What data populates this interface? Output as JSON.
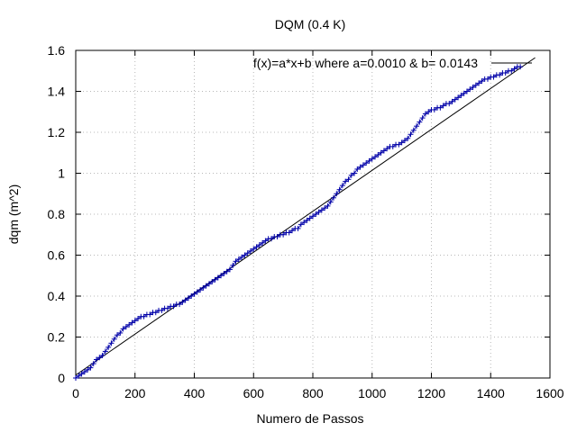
{
  "chart_data": {
    "type": "scatter",
    "title": "DQM (0.4 K)",
    "xlabel": "Numero de Passos",
    "ylabel": "dqm (m^2)",
    "xlim": [
      0,
      1600
    ],
    "ylim": [
      0,
      1.6
    ],
    "xticks": [
      "0",
      "200",
      "400",
      "600",
      "800",
      "1000",
      "1200",
      "1400",
      "1600"
    ],
    "yticks": [
      "0",
      "0.2",
      "0.4",
      "0.6",
      "0.8",
      "1",
      "1.2",
      "1.4",
      "1.6"
    ],
    "grid": true,
    "legend_position": "top-right",
    "fit_label": "f(x)=a*x+b where a=0.0010 & b= 0.0143",
    "fit": {
      "a": 0.001,
      "b": 0.0143,
      "x_range": [
        0,
        1550
      ]
    },
    "series": [
      {
        "points": [
          [
            0,
            0.0
          ],
          [
            10,
            0.01
          ],
          [
            20,
            0.02
          ],
          [
            30,
            0.03
          ],
          [
            40,
            0.04
          ],
          [
            50,
            0.05
          ],
          [
            60,
            0.07
          ],
          [
            70,
            0.09
          ],
          [
            80,
            0.1
          ],
          [
            90,
            0.11
          ],
          [
            100,
            0.13
          ],
          [
            110,
            0.15
          ],
          [
            120,
            0.17
          ],
          [
            130,
            0.19
          ],
          [
            140,
            0.21
          ],
          [
            150,
            0.22
          ],
          [
            160,
            0.24
          ],
          [
            170,
            0.25
          ],
          [
            180,
            0.26
          ],
          [
            190,
            0.27
          ],
          [
            200,
            0.28
          ],
          [
            210,
            0.29
          ],
          [
            220,
            0.3
          ],
          [
            230,
            0.3
          ],
          [
            240,
            0.31
          ],
          [
            250,
            0.31
          ],
          [
            260,
            0.32
          ],
          [
            270,
            0.32
          ],
          [
            280,
            0.33
          ],
          [
            290,
            0.33
          ],
          [
            300,
            0.34
          ],
          [
            310,
            0.34
          ],
          [
            320,
            0.35
          ],
          [
            330,
            0.35
          ],
          [
            340,
            0.36
          ],
          [
            350,
            0.36
          ],
          [
            360,
            0.37
          ],
          [
            370,
            0.38
          ],
          [
            380,
            0.39
          ],
          [
            390,
            0.4
          ],
          [
            400,
            0.41
          ],
          [
            410,
            0.42
          ],
          [
            420,
            0.43
          ],
          [
            430,
            0.44
          ],
          [
            440,
            0.45
          ],
          [
            450,
            0.46
          ],
          [
            460,
            0.47
          ],
          [
            470,
            0.48
          ],
          [
            480,
            0.49
          ],
          [
            490,
            0.5
          ],
          [
            500,
            0.51
          ],
          [
            510,
            0.52
          ],
          [
            520,
            0.53
          ],
          [
            530,
            0.55
          ],
          [
            540,
            0.57
          ],
          [
            550,
            0.58
          ],
          [
            560,
            0.59
          ],
          [
            570,
            0.6
          ],
          [
            580,
            0.61
          ],
          [
            590,
            0.62
          ],
          [
            600,
            0.63
          ],
          [
            610,
            0.64
          ],
          [
            620,
            0.65
          ],
          [
            630,
            0.66
          ],
          [
            640,
            0.67
          ],
          [
            650,
            0.68
          ],
          [
            660,
            0.68
          ],
          [
            670,
            0.69
          ],
          [
            680,
            0.69
          ],
          [
            690,
            0.7
          ],
          [
            700,
            0.7
          ],
          [
            710,
            0.71
          ],
          [
            720,
            0.71
          ],
          [
            730,
            0.72
          ],
          [
            740,
            0.73
          ],
          [
            750,
            0.73
          ],
          [
            760,
            0.75
          ],
          [
            770,
            0.76
          ],
          [
            780,
            0.77
          ],
          [
            790,
            0.78
          ],
          [
            800,
            0.79
          ],
          [
            810,
            0.8
          ],
          [
            820,
            0.81
          ],
          [
            830,
            0.82
          ],
          [
            840,
            0.83
          ],
          [
            850,
            0.84
          ],
          [
            860,
            0.86
          ],
          [
            870,
            0.88
          ],
          [
            880,
            0.9
          ],
          [
            890,
            0.92
          ],
          [
            900,
            0.94
          ],
          [
            910,
            0.96
          ],
          [
            920,
            0.97
          ],
          [
            930,
            0.99
          ],
          [
            940,
            1.0
          ],
          [
            950,
            1.02
          ],
          [
            960,
            1.03
          ],
          [
            970,
            1.04
          ],
          [
            980,
            1.05
          ],
          [
            990,
            1.06
          ],
          [
            1000,
            1.07
          ],
          [
            1010,
            1.08
          ],
          [
            1020,
            1.09
          ],
          [
            1030,
            1.1
          ],
          [
            1040,
            1.11
          ],
          [
            1050,
            1.12
          ],
          [
            1060,
            1.13
          ],
          [
            1070,
            1.13
          ],
          [
            1080,
            1.14
          ],
          [
            1090,
            1.14
          ],
          [
            1100,
            1.15
          ],
          [
            1110,
            1.16
          ],
          [
            1120,
            1.17
          ],
          [
            1130,
            1.19
          ],
          [
            1140,
            1.21
          ],
          [
            1150,
            1.23
          ],
          [
            1160,
            1.25
          ],
          [
            1170,
            1.27
          ],
          [
            1180,
            1.29
          ],
          [
            1190,
            1.3
          ],
          [
            1200,
            1.31
          ],
          [
            1210,
            1.31
          ],
          [
            1220,
            1.32
          ],
          [
            1230,
            1.32
          ],
          [
            1240,
            1.33
          ],
          [
            1250,
            1.34
          ],
          [
            1260,
            1.34
          ],
          [
            1270,
            1.35
          ],
          [
            1280,
            1.36
          ],
          [
            1290,
            1.37
          ],
          [
            1300,
            1.38
          ],
          [
            1310,
            1.39
          ],
          [
            1320,
            1.4
          ],
          [
            1330,
            1.41
          ],
          [
            1340,
            1.42
          ],
          [
            1350,
            1.43
          ],
          [
            1360,
            1.44
          ],
          [
            1370,
            1.45
          ],
          [
            1380,
            1.46
          ],
          [
            1390,
            1.46
          ],
          [
            1400,
            1.47
          ],
          [
            1410,
            1.47
          ],
          [
            1420,
            1.48
          ],
          [
            1430,
            1.48
          ],
          [
            1440,
            1.49
          ],
          [
            1450,
            1.49
          ],
          [
            1460,
            1.5
          ],
          [
            1470,
            1.5
          ],
          [
            1480,
            1.51
          ],
          [
            1490,
            1.52
          ],
          [
            1500,
            1.52
          ]
        ]
      }
    ],
    "colors": {
      "points": "#0000a8",
      "fit": "#000000",
      "grid": "#b8b8b8",
      "axes": "#000000"
    }
  }
}
